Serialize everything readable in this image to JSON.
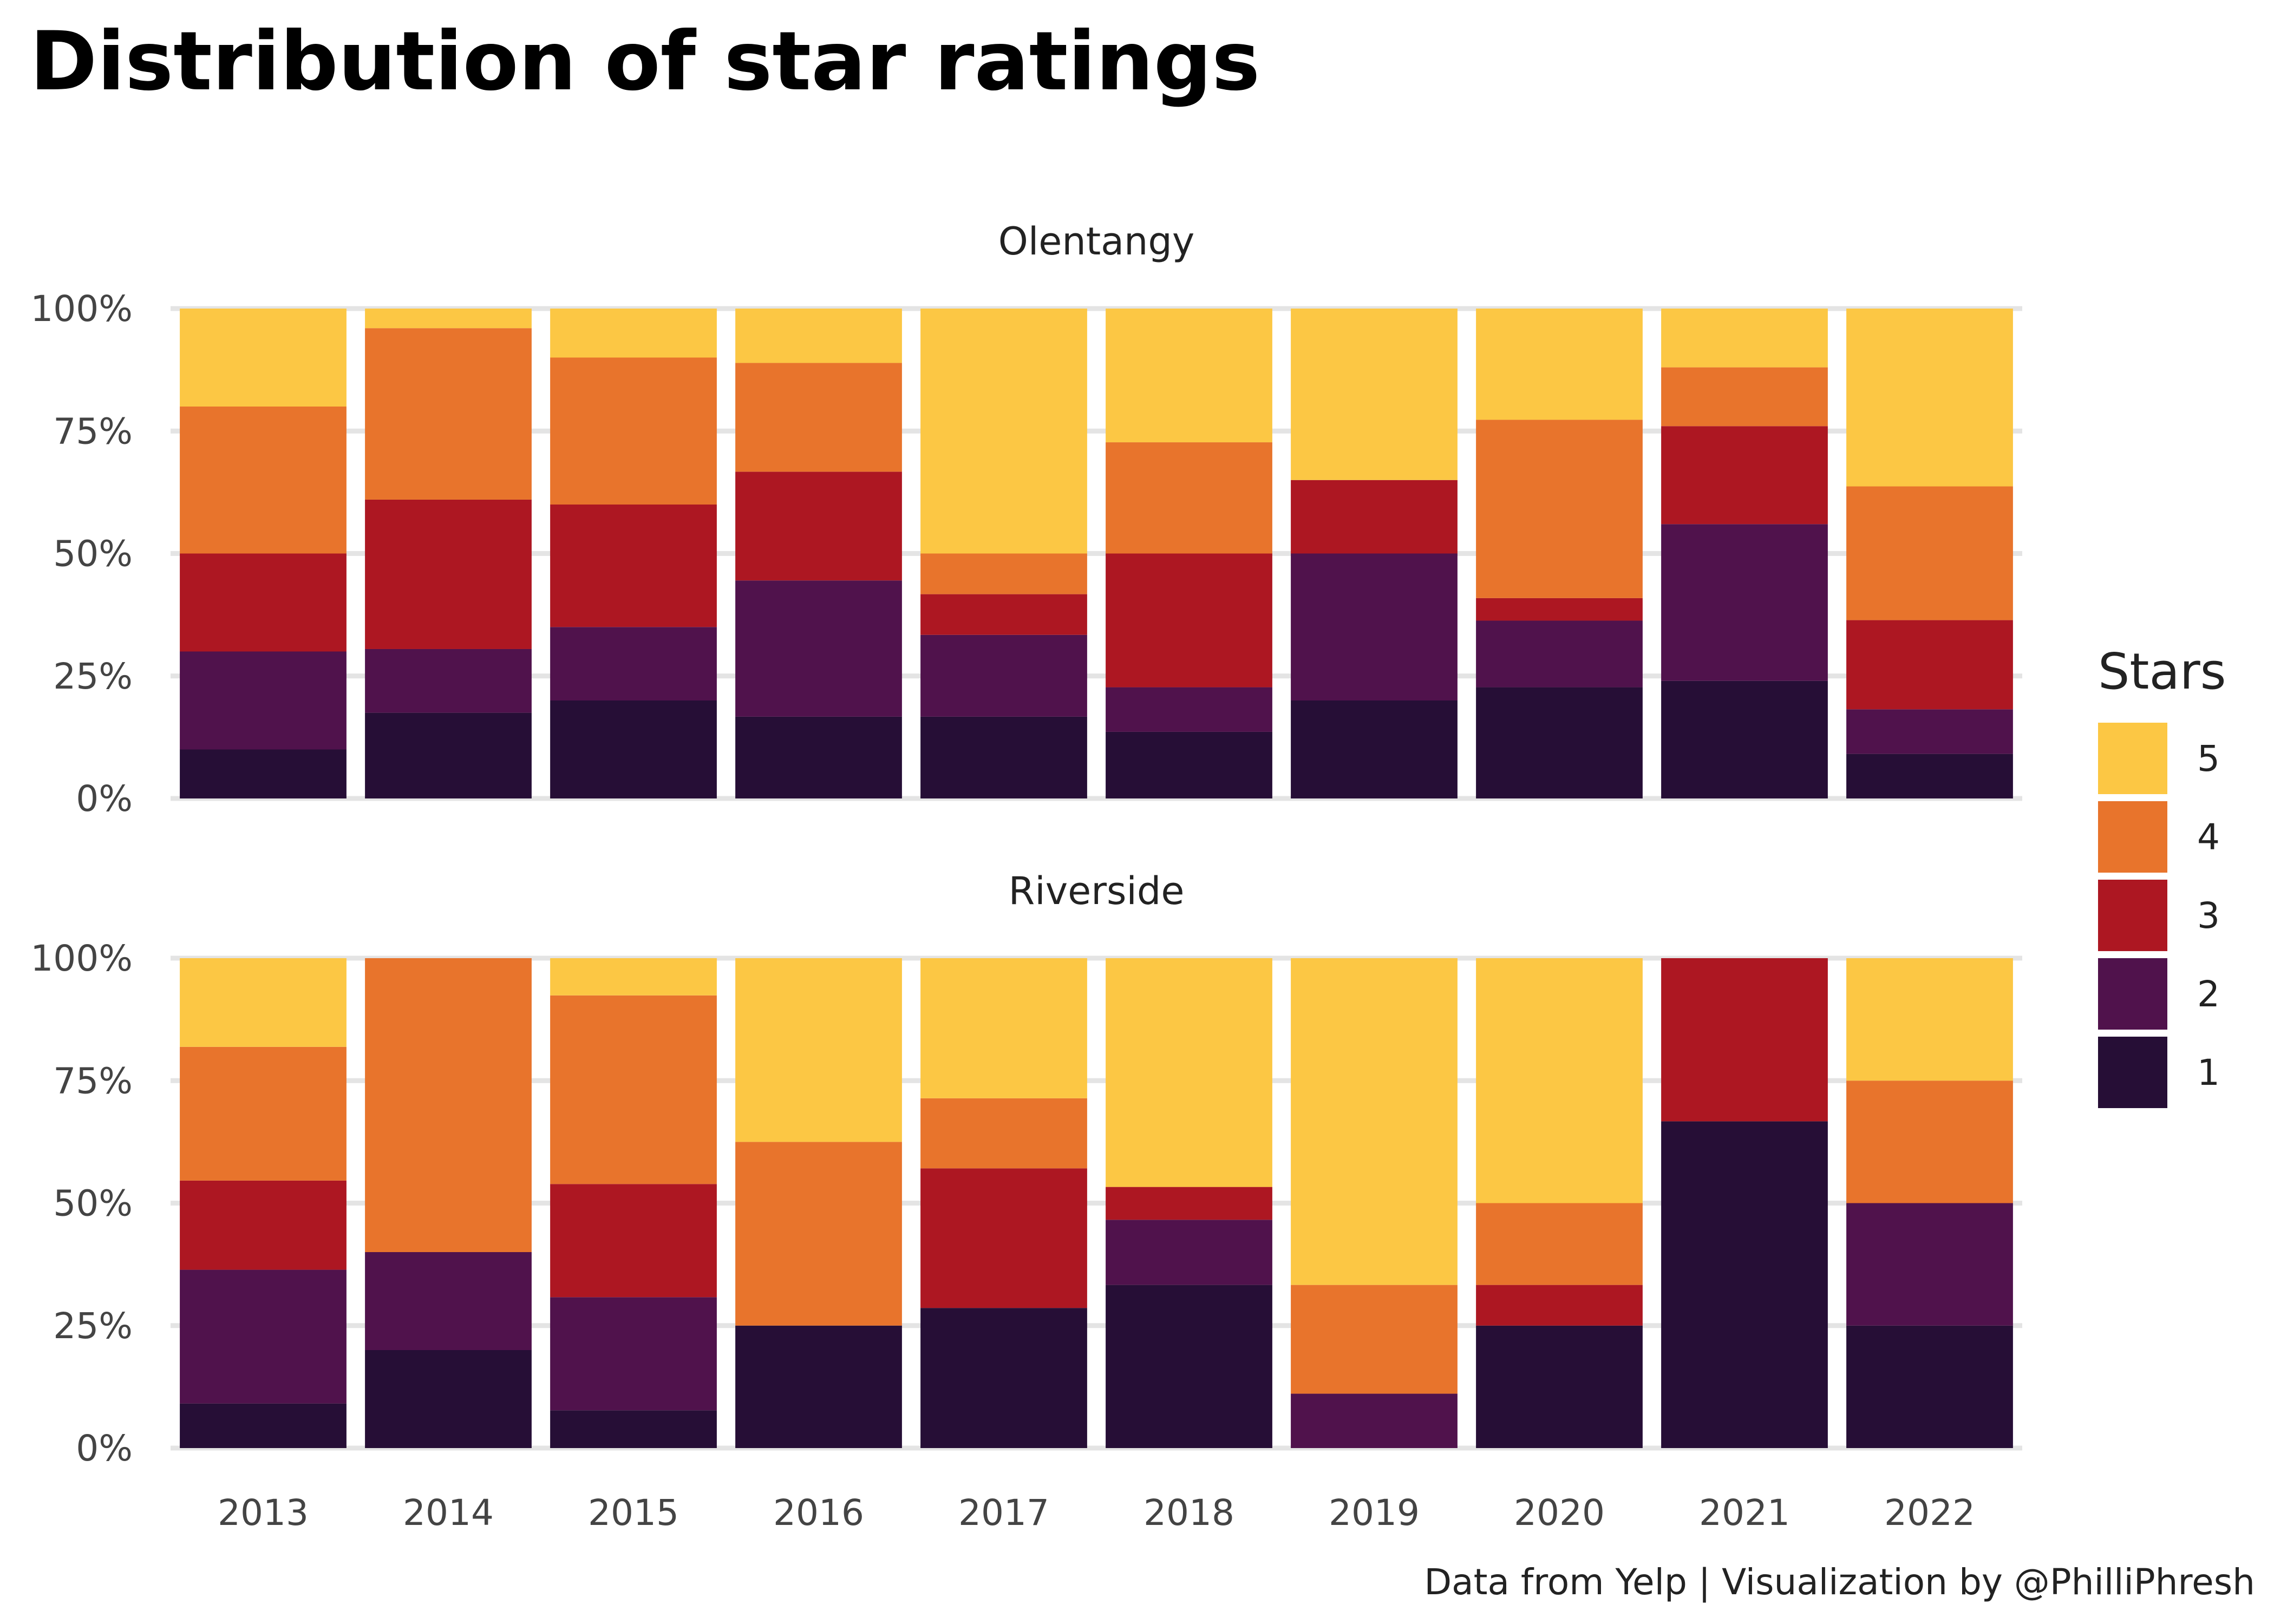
{
  "chart_data": {
    "type": "bar",
    "stacked": true,
    "normalized": true,
    "title": "Distribution of star ratings",
    "caption": "Data from Yelp | Visualization by @PhilliPhresh",
    "categories": [
      "2013",
      "2014",
      "2015",
      "2016",
      "2017",
      "2018",
      "2019",
      "2020",
      "2021",
      "2022"
    ],
    "ylim": [
      0,
      1
    ],
    "y_ticks": [
      {
        "value": 0,
        "label": "0%"
      },
      {
        "value": 0.25,
        "label": "25%"
      },
      {
        "value": 0.5,
        "label": "50%"
      },
      {
        "value": 0.75,
        "label": "75%"
      },
      {
        "value": 1,
        "label": "100%"
      }
    ],
    "grid": true,
    "legend": {
      "title": "Stars",
      "placement": "right",
      "entries": [
        {
          "label": "5",
          "color": "#FCC744"
        },
        {
          "label": "4",
          "color": "#E8742C"
        },
        {
          "label": "3",
          "color": "#AD1722"
        },
        {
          "label": "2",
          "color": "#50124C"
        },
        {
          "label": "1",
          "color": "#260E36"
        }
      ]
    },
    "panels": [
      {
        "facet": "Olentangy",
        "series": [
          {
            "name": "1",
            "color": "#260E36",
            "values": [
              0.1,
              0.175,
              0.2,
              0.167,
              0.167,
              0.136,
              0.2,
              0.227,
              0.24,
              0.091
            ]
          },
          {
            "name": "2",
            "color": "#50124C",
            "values": [
              0.2,
              0.13,
              0.15,
              0.278,
              0.167,
              0.091,
              0.3,
              0.136,
              0.32,
              0.091
            ]
          },
          {
            "name": "3",
            "color": "#AD1722",
            "values": [
              0.2,
              0.305,
              0.25,
              0.222,
              0.083,
              0.273,
              0.15,
              0.046,
              0.2,
              0.182
            ]
          },
          {
            "name": "4",
            "color": "#E8742C",
            "values": [
              0.3,
              0.35,
              0.3,
              0.222,
              0.083,
              0.227,
              0.0,
              0.364,
              0.12,
              0.273
            ]
          },
          {
            "name": "5",
            "color": "#FCC744",
            "values": [
              0.2,
              0.04,
              0.1,
              0.111,
              0.5,
              0.273,
              0.35,
              0.227,
              0.12,
              0.363
            ]
          }
        ]
      },
      {
        "facet": "Riverside",
        "series": [
          {
            "name": "1",
            "color": "#260E36",
            "values": [
              0.091,
              0.2,
              0.077,
              0.25,
              0.286,
              0.333,
              0.0,
              0.25,
              0.667,
              0.25
            ]
          },
          {
            "name": "2",
            "color": "#50124C",
            "values": [
              0.273,
              0.2,
              0.231,
              0.0,
              0.0,
              0.133,
              0.111,
              0.0,
              0.0,
              0.25
            ]
          },
          {
            "name": "3",
            "color": "#AD1722",
            "values": [
              0.182,
              0.0,
              0.231,
              0.0,
              0.285,
              0.067,
              0.0,
              0.083,
              0.333,
              0.0
            ]
          },
          {
            "name": "4",
            "color": "#E8742C",
            "values": [
              0.273,
              0.6,
              0.385,
              0.375,
              0.143,
              0.0,
              0.222,
              0.167,
              0.0,
              0.25
            ]
          },
          {
            "name": "5",
            "color": "#FCC744",
            "values": [
              0.181,
              0.0,
              0.076,
              0.375,
              0.286,
              0.467,
              0.667,
              0.5,
              0.0,
              0.25
            ]
          }
        ]
      }
    ]
  }
}
